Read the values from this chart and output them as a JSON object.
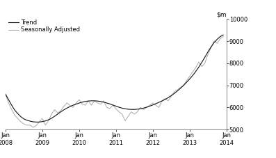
{
  "ylim": [
    5000,
    10000
  ],
  "yticks": [
    5000,
    6000,
    7000,
    8000,
    9000,
    10000
  ],
  "xtick_labels": [
    "Jan\n2008",
    "Jan\n2009",
    "Jan\n2010",
    "Jan\n2011",
    "Jan\n2012",
    "Jan\n2013",
    "Jan\n2014"
  ],
  "trend_color": "#111111",
  "seasonal_color": "#aaaaaa",
  "legend_trend": "Trend",
  "legend_seasonal": "Seasonally Adjusted",
  "trend_y": [
    6600,
    6350,
    6100,
    5880,
    5720,
    5580,
    5480,
    5420,
    5380,
    5350,
    5340,
    5340,
    5360,
    5390,
    5440,
    5510,
    5600,
    5700,
    5800,
    5890,
    5970,
    6040,
    6100,
    6150,
    6200,
    6240,
    6270,
    6290,
    6300,
    6300,
    6290,
    6270,
    6240,
    6200,
    6160,
    6110,
    6060,
    6010,
    5970,
    5940,
    5920,
    5910,
    5910,
    5920,
    5940,
    5970,
    6010,
    6060,
    6110,
    6170,
    6230,
    6290,
    6360,
    6440,
    6530,
    6630,
    6740,
    6860,
    6990,
    7130,
    7280,
    7440,
    7620,
    7820,
    8040,
    8270,
    8510,
    8730,
    8930,
    9080,
    9200,
    9280
  ],
  "seasonal_y": [
    6600,
    6200,
    5900,
    5650,
    5500,
    5350,
    5250,
    5200,
    5200,
    5100,
    5180,
    5350,
    5500,
    5200,
    5400,
    5700,
    5900,
    5750,
    5850,
    6050,
    6200,
    6100,
    6000,
    6200,
    6350,
    6150,
    6100,
    6300,
    6100,
    6300,
    6200,
    6150,
    6300,
    6000,
    5950,
    6100,
    5950,
    5800,
    5700,
    5400,
    5600,
    5800,
    5700,
    5800,
    6000,
    5900,
    6000,
    6100,
    6200,
    6100,
    6000,
    6300,
    6400,
    6300,
    6500,
    6700,
    6800,
    6900,
    7000,
    7200,
    7400,
    7600,
    7800,
    8050,
    7850,
    8000,
    8400,
    8700,
    9000,
    8900,
    9100,
    9200
  ],
  "background_color": "#ffffff",
  "linewidth_trend": 0.8,
  "linewidth_seasonal": 0.7
}
